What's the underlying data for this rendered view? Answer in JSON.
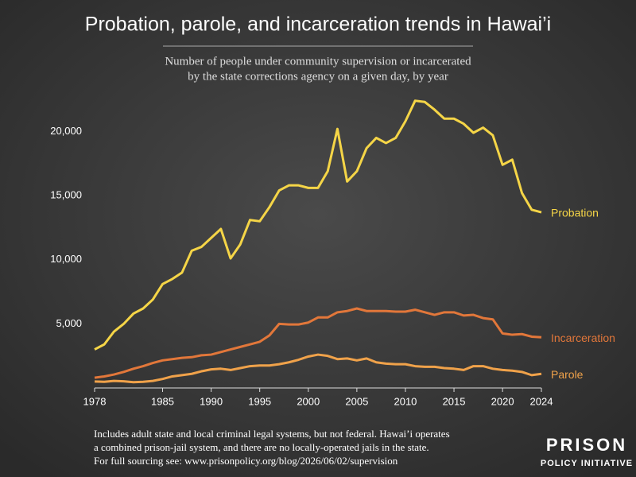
{
  "chart_data": {
    "type": "line",
    "title": "Probation, parole, and incarceration trends in Hawai’i",
    "subtitle": [
      "Number of people under community supervision or incarcerated",
      "by the state corrections agency on a given day, by year"
    ],
    "x": [
      1978,
      1979,
      1980,
      1981,
      1982,
      1983,
      1984,
      1985,
      1986,
      1987,
      1988,
      1989,
      1990,
      1991,
      1992,
      1993,
      1994,
      1995,
      1996,
      1997,
      1998,
      1999,
      2000,
      2001,
      2002,
      2003,
      2004,
      2005,
      2006,
      2007,
      2008,
      2009,
      2010,
      2011,
      2012,
      2013,
      2014,
      2015,
      2016,
      2017,
      2018,
      2019,
      2020,
      2021,
      2022,
      2023,
      2024
    ],
    "series": [
      {
        "name": "Probation",
        "color": "#f5d547",
        "values": [
          3000,
          3400,
          4400,
          5000,
          5800,
          6200,
          6900,
          8100,
          8500,
          9000,
          10700,
          11000,
          11700,
          12400,
          10100,
          11200,
          13100,
          13000,
          14100,
          15400,
          15800,
          15800,
          15600,
          15600,
          16900,
          20200,
          16100,
          16900,
          18700,
          19500,
          19100,
          19500,
          20800,
          22400,
          22300,
          21700,
          21000,
          21000,
          20600,
          19900,
          20300,
          19700,
          17400,
          17800,
          15200,
          13900,
          13700
        ]
      },
      {
        "name": "Incarceration",
        "color": "#e2773a",
        "values": [
          800,
          900,
          1050,
          1250,
          1500,
          1700,
          1950,
          2150,
          2250,
          2350,
          2400,
          2550,
          2600,
          2800,
          3000,
          3200,
          3400,
          3600,
          4100,
          5000,
          4950,
          4950,
          5100,
          5500,
          5500,
          5900,
          6000,
          6200,
          6000,
          6000,
          6000,
          5950,
          5950,
          6100,
          5900,
          5700,
          5900,
          5900,
          5650,
          5700,
          5450,
          5350,
          4250,
          4150,
          4200,
          4000,
          3950
        ]
      },
      {
        "name": "Parole",
        "color": "#f0a24a",
        "values": [
          500,
          480,
          550,
          520,
          450,
          480,
          550,
          700,
          900,
          1000,
          1100,
          1300,
          1450,
          1500,
          1400,
          1550,
          1700,
          1750,
          1750,
          1850,
          2000,
          2200,
          2450,
          2600,
          2500,
          2250,
          2300,
          2150,
          2300,
          2000,
          1900,
          1850,
          1850,
          1700,
          1650,
          1650,
          1550,
          1500,
          1400,
          1700,
          1700,
          1500,
          1400,
          1350,
          1250,
          1000,
          1100
        ]
      }
    ],
    "xlim": [
      1978,
      2024
    ],
    "xticks": [
      1978,
      1985,
      1990,
      1995,
      2000,
      2005,
      2010,
      2015,
      2020,
      2024
    ],
    "ylim": [
      0,
      23000
    ],
    "yticks": [
      {
        "value": 5000,
        "label": "5,000"
      },
      {
        "value": 10000,
        "label": "10,000"
      },
      {
        "value": 15000,
        "label": "15,000"
      },
      {
        "value": 20000,
        "label": "20,000"
      }
    ],
    "grid": false,
    "footnote": [
      "Includes adult state and local criminal legal systems, but not federal. Hawai’i operates",
      "a combined prison-jail system, and there are no locally-operated jails in the state.",
      "For full sourcing see: www.prisonpolicy.org/blog/2026/06/02/supervision"
    ],
    "logo": [
      "PRISON",
      "POLICY INITIATIVE"
    ]
  }
}
